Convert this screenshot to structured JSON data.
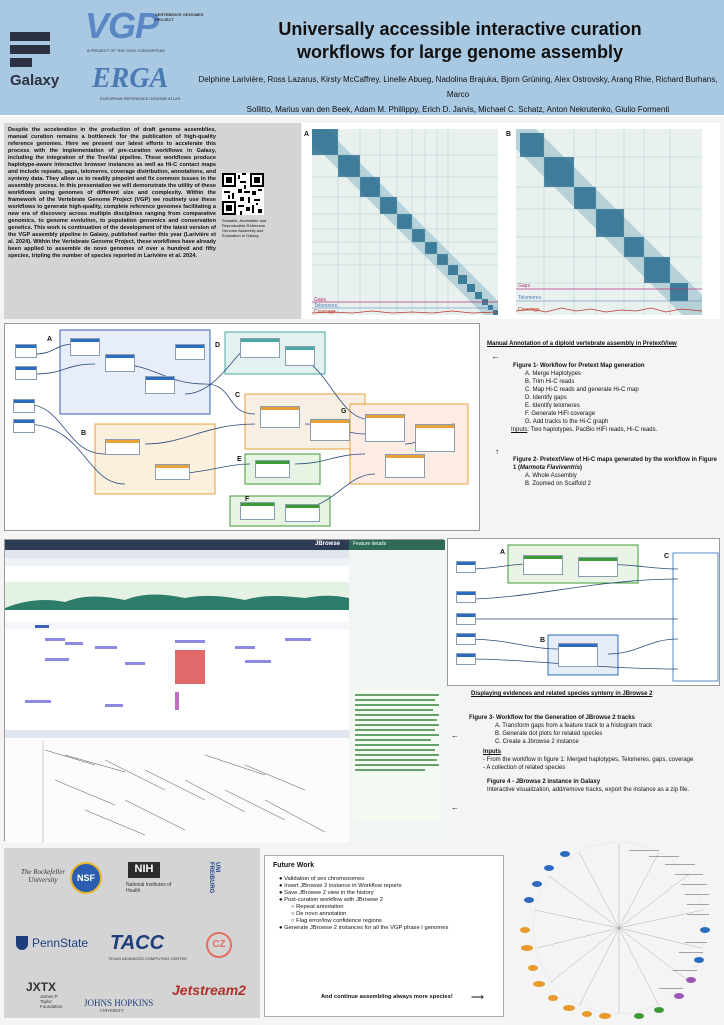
{
  "header": {
    "title_line1": "Universally accessible interactive curation",
    "title_line2": "workflows for large genome assembly",
    "authors_line1": "Delphine Larivière, Ross Lazarus, Kirsty McCaffrey, Linelle Abueg, Nadolina Brajuka, Bjorn Grüning, Alex Ostrovsky, Arang Rhie, Richard Burhans, Marco",
    "authors_line2": "Sollitto, Marius van den Beek, Adam M. Phillippy, Erich D. Jarvis, Michael C. Schatz, Anton Nekrutenko, Giulio Formenti",
    "galaxy_logo_text": "Galaxy",
    "vgp_logo_text": "VGP",
    "vgp_logo_sub": "VERTEBRATE GENOMES PROJECT",
    "vgp_logo_tag": "A PROJECT OF THE G10K CONSORTIUM",
    "erga_logo_text": "ERGA",
    "erga_logo_sub": "EUROPEAN REFERENCE GENOME ATLAS"
  },
  "abstract": {
    "text": "Despite the acceleration in the production of draft genome assemblies, manual curation remains a bottleneck for the publication of high-quality reference genomes. Here we present our latest efforts to accelerate this process with the implementation of pre-curation workflows in Galaxy, including the integration of the TreeVal pipeline. These workflows produce haplotype-aware interactive browser instances as well as Hi-C contact maps and include repeats, gaps, telomeres, coverage distribution, annotations, and synteny data. They allow us to readily pinpoint and fix common issues in the assembly process. In this presentation we will demonstrate the utility of these workflows using genomes of different size and complexity. Within the framework of the Vertebrate Genome Project (VGP) we routinely use these workflows to generate high-quality, complete reference genomes facilitating a new era of discovery across multiple disciplines ranging from comparative genomics, to genome evolution, to population genomics and conservation genetics. This work is continuation of the development of the latest version of the VGP assembly pipeline in Galaxy, published earlier this year (Larivière et al. 2024). Within the Vertebrate Genome Project, these workflows have already been applied to assemble de novo genomes of over a hundred and fifty species, tripling the number of species reported in Larivière et al. 2024.",
    "qr_caption": "Scalable, Accessible and Reproducible Reference Genome Assembly and Evaluation in Galaxy."
  },
  "hic": {
    "panel_a": "A",
    "panel_b": "B",
    "gaps": "Gaps",
    "telomeres": "Telomeres",
    "coverage": "Coverage"
  },
  "workflow1": {
    "labels": [
      "A",
      "B",
      "C",
      "D",
      "E",
      "F",
      "G"
    ],
    "section_title": "Manual Annotation of a diploid vertebrate assembly in PretextView",
    "fig1_title": "Figure 1- Workflow for Pretext Map generation",
    "fig1_items": [
      "Merge Haplotypes",
      "Trim Hi-C reads",
      "Map Hi-C reads and generate Hi-C map",
      "Identify gaps",
      "Identify telomeres",
      "Generate HiFi coverage",
      "Add tracks to the Hi-C graph"
    ],
    "fig1_letters": [
      "A.",
      "B.",
      "C.",
      "D.",
      "E.",
      "F.",
      "G."
    ],
    "fig1_inputs_label": "Inputs",
    "fig1_inputs": ": Two haplotypes, PacBio HiFi reads, Hi-C reads.",
    "fig2_title": "Figure 2- PretextView of Hi-C maps generated by the workflow in Figure 1 (",
    "fig2_species": "Marmota Flaviventris",
    "fig2_title_end": ")",
    "fig2_items": [
      "Whole Assembly",
      "Zoomed on Scaffold 2"
    ],
    "fig2_letters": [
      "A.",
      "B."
    ]
  },
  "jbrowse": {
    "title": "JBrowse",
    "feature_details": "Feature details",
    "right_labels": [
      "A",
      "B",
      "C"
    ],
    "section_title": "Displaying evidences and related species synteny in JBrowse 2",
    "fig3_title": "Figure 3- Workflow for the Generation of JBrowse 2 tracks",
    "fig3_items": [
      "Transform gaps from a feature track to a histogram track",
      "Generate dot plots for related species",
      "Create a Jbrowse 2 instance"
    ],
    "fig3_letters": [
      "A.",
      "B.",
      "C."
    ],
    "fig3_inputs_label": "Inputs",
    "fig3_inputs": [
      "From the workflow in figure 1: Merged haplotypes, Telomeres, gaps, coverage",
      "A collection of related species"
    ],
    "fig4_title": "Figure 4 - JBrowse 2 instance in Galaxy",
    "fig4_desc": "Interactive visualization, add/remove tracks, export the instance as a zip file."
  },
  "logos": {
    "rockefeller": "The Rockefeller University",
    "nsf": "NSF",
    "nih": "NIH",
    "nih_sub": "National Institutes of Health",
    "freiburg": "UNI FREIBURG",
    "pennstate": "PennState",
    "tacc": "TACC",
    "tacc_sub": "TEXAS ADVANCED COMPUTING CENTER",
    "cz": "CZ",
    "jxtx": "JXTX",
    "jxtx_sub": "James P. Taylor Foundation",
    "jhu": "JOHNS HOPKINS",
    "jhu_sub": "UNIVERSITY",
    "jetstream": "Jetstream2"
  },
  "future": {
    "title": "Future Work",
    "items": [
      "Validation of sex chromosomes",
      "Insert JBrowse 2 instance in Workflow reports",
      "Save JBrowse 2 view in the history",
      "Post-curation workflow with JBrowse 2"
    ],
    "subitems": [
      "Repeat annotation",
      "De novo annotation",
      "Flag error/low confidence regions"
    ],
    "last_item": "Generate JBrowse 2 instances for all the VGP phase I genomes",
    "closing": "And continue assembling always more species!"
  },
  "colors": {
    "header_bg": "#a9c8e2",
    "panel_gray": "#d4d4d4",
    "galaxy_dark": "#2c3143",
    "hic_blue": "#2b6e8f",
    "gaps_color": "#b3347a",
    "coverage_color": "#c0392b",
    "node_blue": "#2c6cbf",
    "node_green": "#3d9b35",
    "node_orange": "#e8a23a",
    "node_teal": "#49a8a0"
  }
}
